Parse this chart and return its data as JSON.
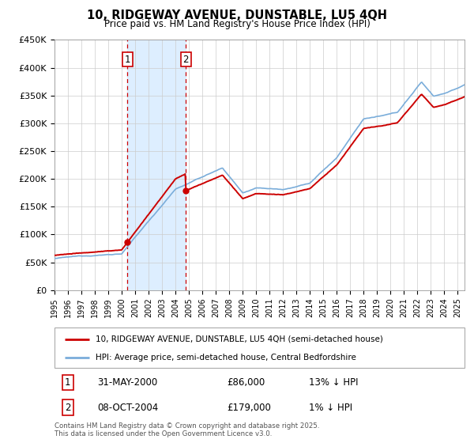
{
  "title": "10, RIDGEWAY AVENUE, DUNSTABLE, LU5 4QH",
  "subtitle": "Price paid vs. HM Land Registry's House Price Index (HPI)",
  "ylim": [
    0,
    450000
  ],
  "yticks": [
    0,
    50000,
    100000,
    150000,
    200000,
    250000,
    300000,
    350000,
    400000,
    450000
  ],
  "ytick_labels": [
    "£0",
    "£50K",
    "£100K",
    "£150K",
    "£200K",
    "£250K",
    "£300K",
    "£350K",
    "£400K",
    "£450K"
  ],
  "sale1_date_num": 2000.42,
  "sale1_price": 86000,
  "sale2_date_num": 2004.77,
  "sale2_price": 179000,
  "sale1_date_str": "31-MAY-2000",
  "sale1_price_str": "£86,000",
  "sale1_hpi_str": "13% ↓ HPI",
  "sale2_date_str": "08-OCT-2004",
  "sale2_price_str": "£179,000",
  "sale2_hpi_str": "1% ↓ HPI",
  "line1_color": "#cc0000",
  "line2_color": "#7aadda",
  "shade_color": "#ddeeff",
  "grid_color": "#cccccc",
  "legend1_text": "10, RIDGEWAY AVENUE, DUNSTABLE, LU5 4QH (semi-detached house)",
  "legend2_text": "HPI: Average price, semi-detached house, Central Bedfordshire",
  "footer_text": "Contains HM Land Registry data © Crown copyright and database right 2025.\nThis data is licensed under the Open Government Licence v3.0.",
  "xmin": 1995.0,
  "xmax": 2025.5
}
